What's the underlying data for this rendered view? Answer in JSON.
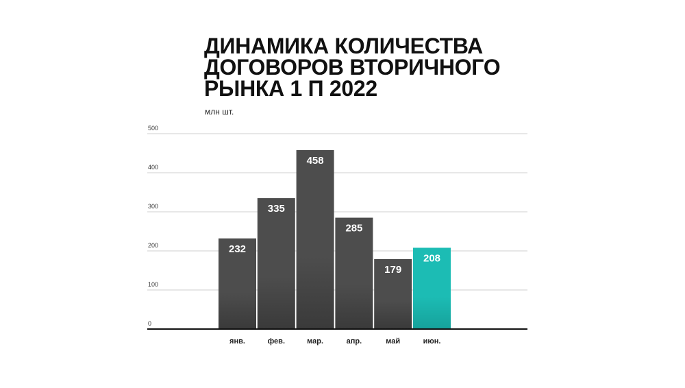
{
  "title_lines": [
    "ДИНАМИКА КОЛИЧЕСТВА",
    "ДОГОВОРОВ ВТОРИЧНОГО",
    "РЫНКА 1 П 2022"
  ],
  "unit_label": "млн шт.",
  "colors": {
    "bar": "#4d4d4d",
    "bar_dark": "#3a3a3a",
    "highlight": "#1cbcb4",
    "highlight_dark": "#16a29b",
    "grid": "#cfcfcf",
    "axis": "#111111"
  },
  "chart_data": {
    "type": "bar",
    "title": "ДИНАМИКА КОЛИЧЕСТВА ДОГОВОРОВ ВТОРИЧНОГО РЫНКА 1 П 2022",
    "ylabel": "млн шт.",
    "xlabel": "",
    "categories": [
      "янв.",
      "фев.",
      "мар.",
      "апр.",
      "май",
      "июн."
    ],
    "values": [
      232,
      335,
      458,
      285,
      179,
      208
    ],
    "highlight_index": 5,
    "ylim": [
      0,
      500
    ],
    "yticks": [
      0,
      100,
      200,
      300,
      400,
      500
    ],
    "grid": true,
    "legend": "none",
    "data_labels": true
  }
}
